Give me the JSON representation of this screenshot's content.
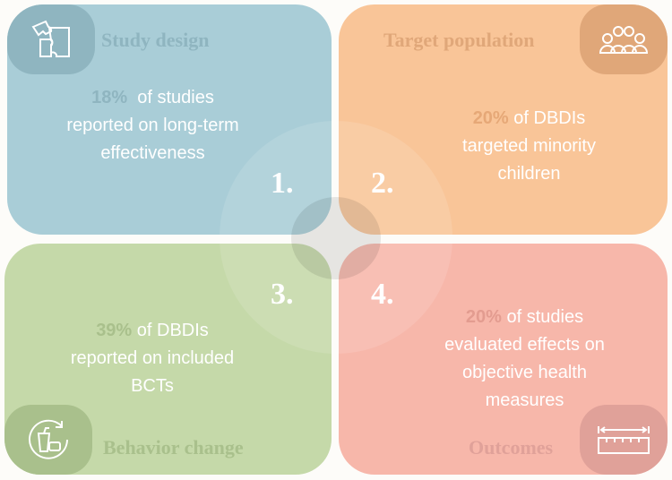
{
  "cards": [
    {
      "number": "1.",
      "title": "Study design",
      "stat": "18%",
      "text_lines": [
        "of studies",
        "reported on long-term",
        "effectiveness"
      ],
      "icon": "puzzle-icon",
      "color": "#a9cdd7"
    },
    {
      "number": "2.",
      "title": "Target population",
      "stat": "20%",
      "text_lines": [
        "of DBDIs",
        "targeted minority",
        "children"
      ],
      "icon": "group-people-icon",
      "color": "#f9c598"
    },
    {
      "number": "3.",
      "title": "Behavior change",
      "stat": "39%",
      "text_lines": [
        "of DBDIs",
        "reported on included",
        "BCTs"
      ],
      "icon": "food-cycle-icon",
      "color": "#c5d9a9"
    },
    {
      "number": "4.",
      "title": "Outcomes",
      "stat": "20%",
      "text_lines": [
        "of studies",
        "evaluated effects on",
        "objective health",
        "measures"
      ],
      "icon": "ruler-icon",
      "color": "#f7b7aa"
    }
  ]
}
